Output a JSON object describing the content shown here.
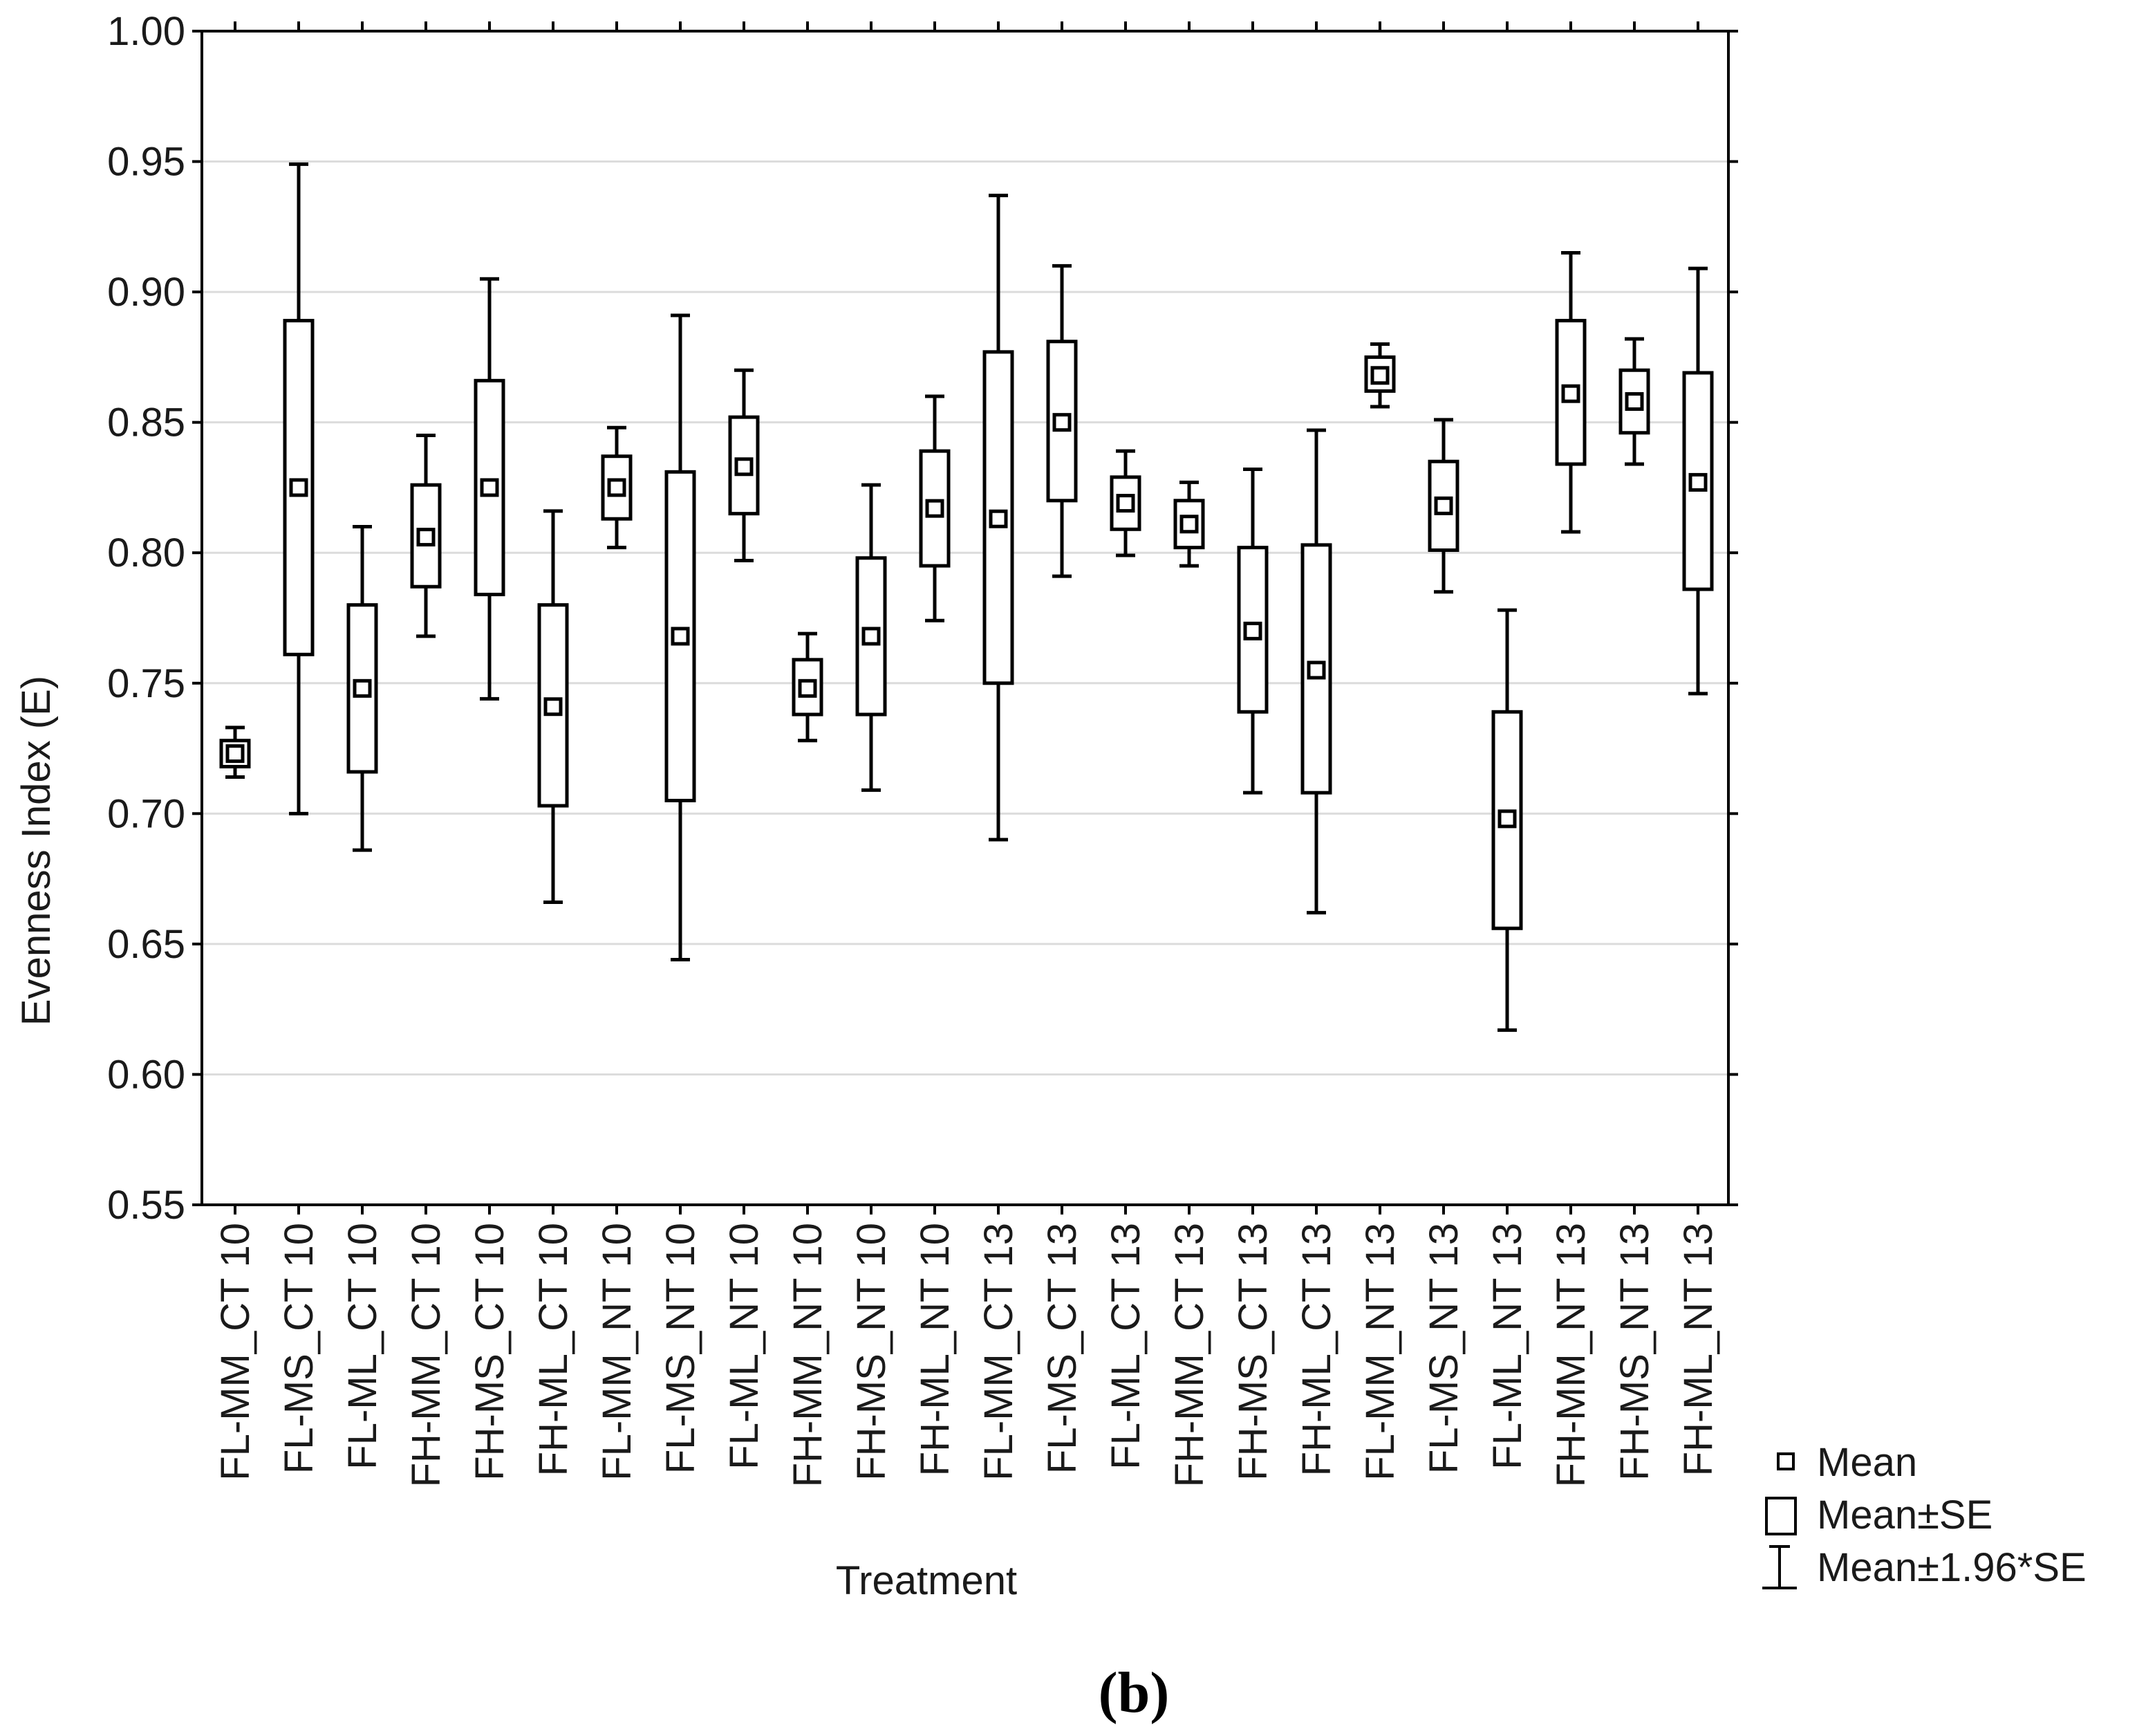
{
  "chart_data": {
    "type": "box",
    "xlabel": "Treatment",
    "ylabel": "Evenness Index (E)",
    "ylim": [
      0.55,
      1.0
    ],
    "yticks": [
      "0.55",
      "0.60",
      "0.65",
      "0.70",
      "0.75",
      "0.80",
      "0.85",
      "0.90",
      "0.95",
      "1.00"
    ],
    "grid": "horizontal",
    "legend_position": "bottom-right",
    "panel_label": "b",
    "legend": {
      "mean": "Mean",
      "se": "Mean±SE",
      "ci": "Mean±1.96*SE"
    },
    "categories": [
      "FL-MM_CT 10",
      "FL-MS_CT 10",
      "FL-ML_CT 10",
      "FH-MM_CT 10",
      "FH-MS_CT 10",
      "FH-ML_CT 10",
      "FL-MM_NT 10",
      "FL-MS_NT 10",
      "FL-ML_NT 10",
      "FH-MM_NT 10",
      "FH-MS_NT 10",
      "FH-ML_NT 10",
      "FL-MM_CT 13",
      "FL-MS_CT 13",
      "FL-ML_CT 13",
      "FH-MM_CT 13",
      "FH-MS_CT 13",
      "FH-ML_CT 13",
      "FL-MM_NT 13",
      "FL-MS_NT 13",
      "FL-ML_NT 13",
      "FH-MM_NT 13",
      "FH-MS_NT 13",
      "FH-ML_NT 13"
    ],
    "series": [
      {
        "mean": [
          0.723,
          0.825,
          0.748,
          0.806,
          0.825,
          0.741,
          0.825,
          0.768,
          0.833,
          0.748,
          0.768,
          0.817,
          0.813,
          0.85,
          0.819,
          0.811,
          0.77,
          0.755,
          0.868,
          0.818,
          0.698,
          0.861,
          0.858,
          0.827
        ],
        "se_low": [
          0.718,
          0.761,
          0.716,
          0.787,
          0.784,
          0.703,
          0.813,
          0.705,
          0.815,
          0.738,
          0.738,
          0.795,
          0.75,
          0.82,
          0.809,
          0.802,
          0.739,
          0.708,
          0.862,
          0.801,
          0.656,
          0.834,
          0.846,
          0.786
        ],
        "se_high": [
          0.728,
          0.889,
          0.78,
          0.826,
          0.866,
          0.78,
          0.837,
          0.831,
          0.852,
          0.759,
          0.798,
          0.839,
          0.877,
          0.881,
          0.829,
          0.82,
          0.802,
          0.803,
          0.875,
          0.835,
          0.739,
          0.889,
          0.87,
          0.869
        ],
        "ci_low": [
          0.714,
          0.7,
          0.686,
          0.768,
          0.744,
          0.666,
          0.802,
          0.644,
          0.797,
          0.728,
          0.709,
          0.774,
          0.69,
          0.791,
          0.799,
          0.795,
          0.708,
          0.662,
          0.856,
          0.785,
          0.617,
          0.808,
          0.834,
          0.746
        ],
        "ci_high": [
          0.733,
          0.949,
          0.81,
          0.845,
          0.905,
          0.816,
          0.848,
          0.891,
          0.87,
          0.769,
          0.826,
          0.86,
          0.937,
          0.91,
          0.839,
          0.827,
          0.832,
          0.847,
          0.88,
          0.851,
          0.778,
          0.915,
          0.882,
          0.909
        ]
      }
    ]
  }
}
